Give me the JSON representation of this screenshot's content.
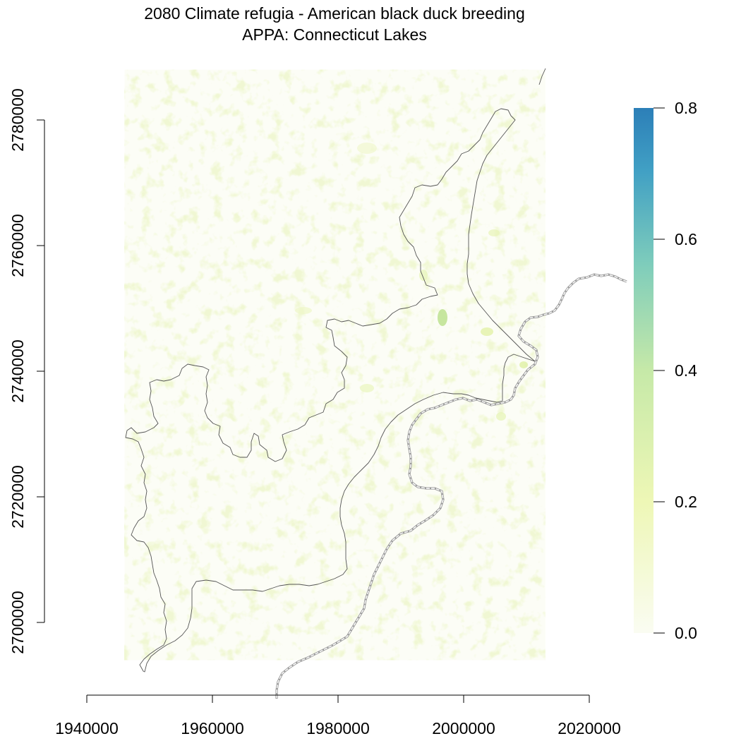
{
  "title": {
    "line1": "2080 Climate refugia - American black duck breeding",
    "line2": "APPA: Connecticut Lakes"
  },
  "map": {
    "x_axis": {
      "ticks": [
        1940000,
        1960000,
        1980000,
        2000000,
        2020000
      ],
      "tick_labels": [
        "1940000",
        "1960000",
        "1980000",
        "2000000",
        "2020000"
      ],
      "range": [
        1940000,
        2020000
      ]
    },
    "y_axis": {
      "ticks": [
        2700000,
        2720000,
        2740000,
        2760000,
        2780000
      ],
      "tick_labels": [
        "2700000",
        "2720000",
        "2740000",
        "2760000",
        "2780000"
      ],
      "range": [
        2700000,
        2780000
      ]
    },
    "raster_extent": {
      "x": [
        1946000,
        2013000
      ],
      "y": [
        2694000,
        2788000
      ]
    },
    "colorbar": {
      "min": 0.0,
      "max": 0.8,
      "ticks": [
        0.0,
        0.2,
        0.4,
        0.6,
        0.8
      ],
      "tick_labels": [
        "0.0",
        "0.2",
        "0.4",
        "0.6",
        "0.8"
      ],
      "colors": [
        "#fafcf2",
        "#eef7b6",
        "#c6e9a8",
        "#7fcdbb",
        "#41a0c4",
        "#2c7fb8"
      ]
    },
    "line_colors": {
      "boundary": "#555555",
      "state_line": "#9a9a9a"
    }
  }
}
